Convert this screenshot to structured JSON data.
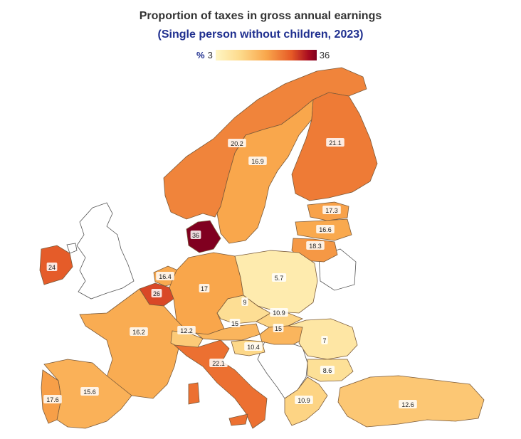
{
  "title": "Proportion of taxes in gross annual earnings",
  "subtitle": "(Single person without children, 2023)",
  "legend": {
    "unit": "%",
    "min": "3",
    "max": "36"
  },
  "colors": {
    "low": "#fff6c4",
    "mid": "#f9a74c",
    "high": "#800020",
    "title": "#333333",
    "subtitle": "#1f2f8f"
  },
  "chart_data": {
    "type": "choropleth",
    "title": "Proportion of taxes in gross annual earnings",
    "subtitle": "(Single person without children, 2023)",
    "unit": "%",
    "scale_range": [
      3,
      36
    ],
    "regions": [
      {
        "country": "Norway",
        "value": 20.2
      },
      {
        "country": "Sweden",
        "value": 16.9
      },
      {
        "country": "Finland",
        "value": 21.1
      },
      {
        "country": "Estonia",
        "value": 17.3
      },
      {
        "country": "Latvia",
        "value": 16.6
      },
      {
        "country": "Lithuania",
        "value": 18.3
      },
      {
        "country": "Denmark",
        "value": 36
      },
      {
        "country": "Ireland",
        "value": 24
      },
      {
        "country": "Netherlands",
        "value": 16.4
      },
      {
        "country": "Belgium",
        "value": 26
      },
      {
        "country": "Germany",
        "value": 17
      },
      {
        "country": "Poland",
        "value": 5.7
      },
      {
        "country": "Czechia",
        "value": 9
      },
      {
        "country": "Slovakia",
        "value": 10.9
      },
      {
        "country": "Austria",
        "value": 15
      },
      {
        "country": "Hungary",
        "value": 15
      },
      {
        "country": "Romania",
        "value": 7
      },
      {
        "country": "Bulgaria",
        "value": 8.6
      },
      {
        "country": "France",
        "value": 16.2
      },
      {
        "country": "Switzerland",
        "value": 12.2
      },
      {
        "country": "Italy",
        "value": 22.1
      },
      {
        "country": "Slovenia",
        "value": 10.4
      },
      {
        "country": "Spain",
        "value": 15.6
      },
      {
        "country": "Portugal",
        "value": 17.6
      },
      {
        "country": "Greece",
        "value": 10.9
      },
      {
        "country": "Türkiye",
        "value": 12.6
      }
    ]
  }
}
